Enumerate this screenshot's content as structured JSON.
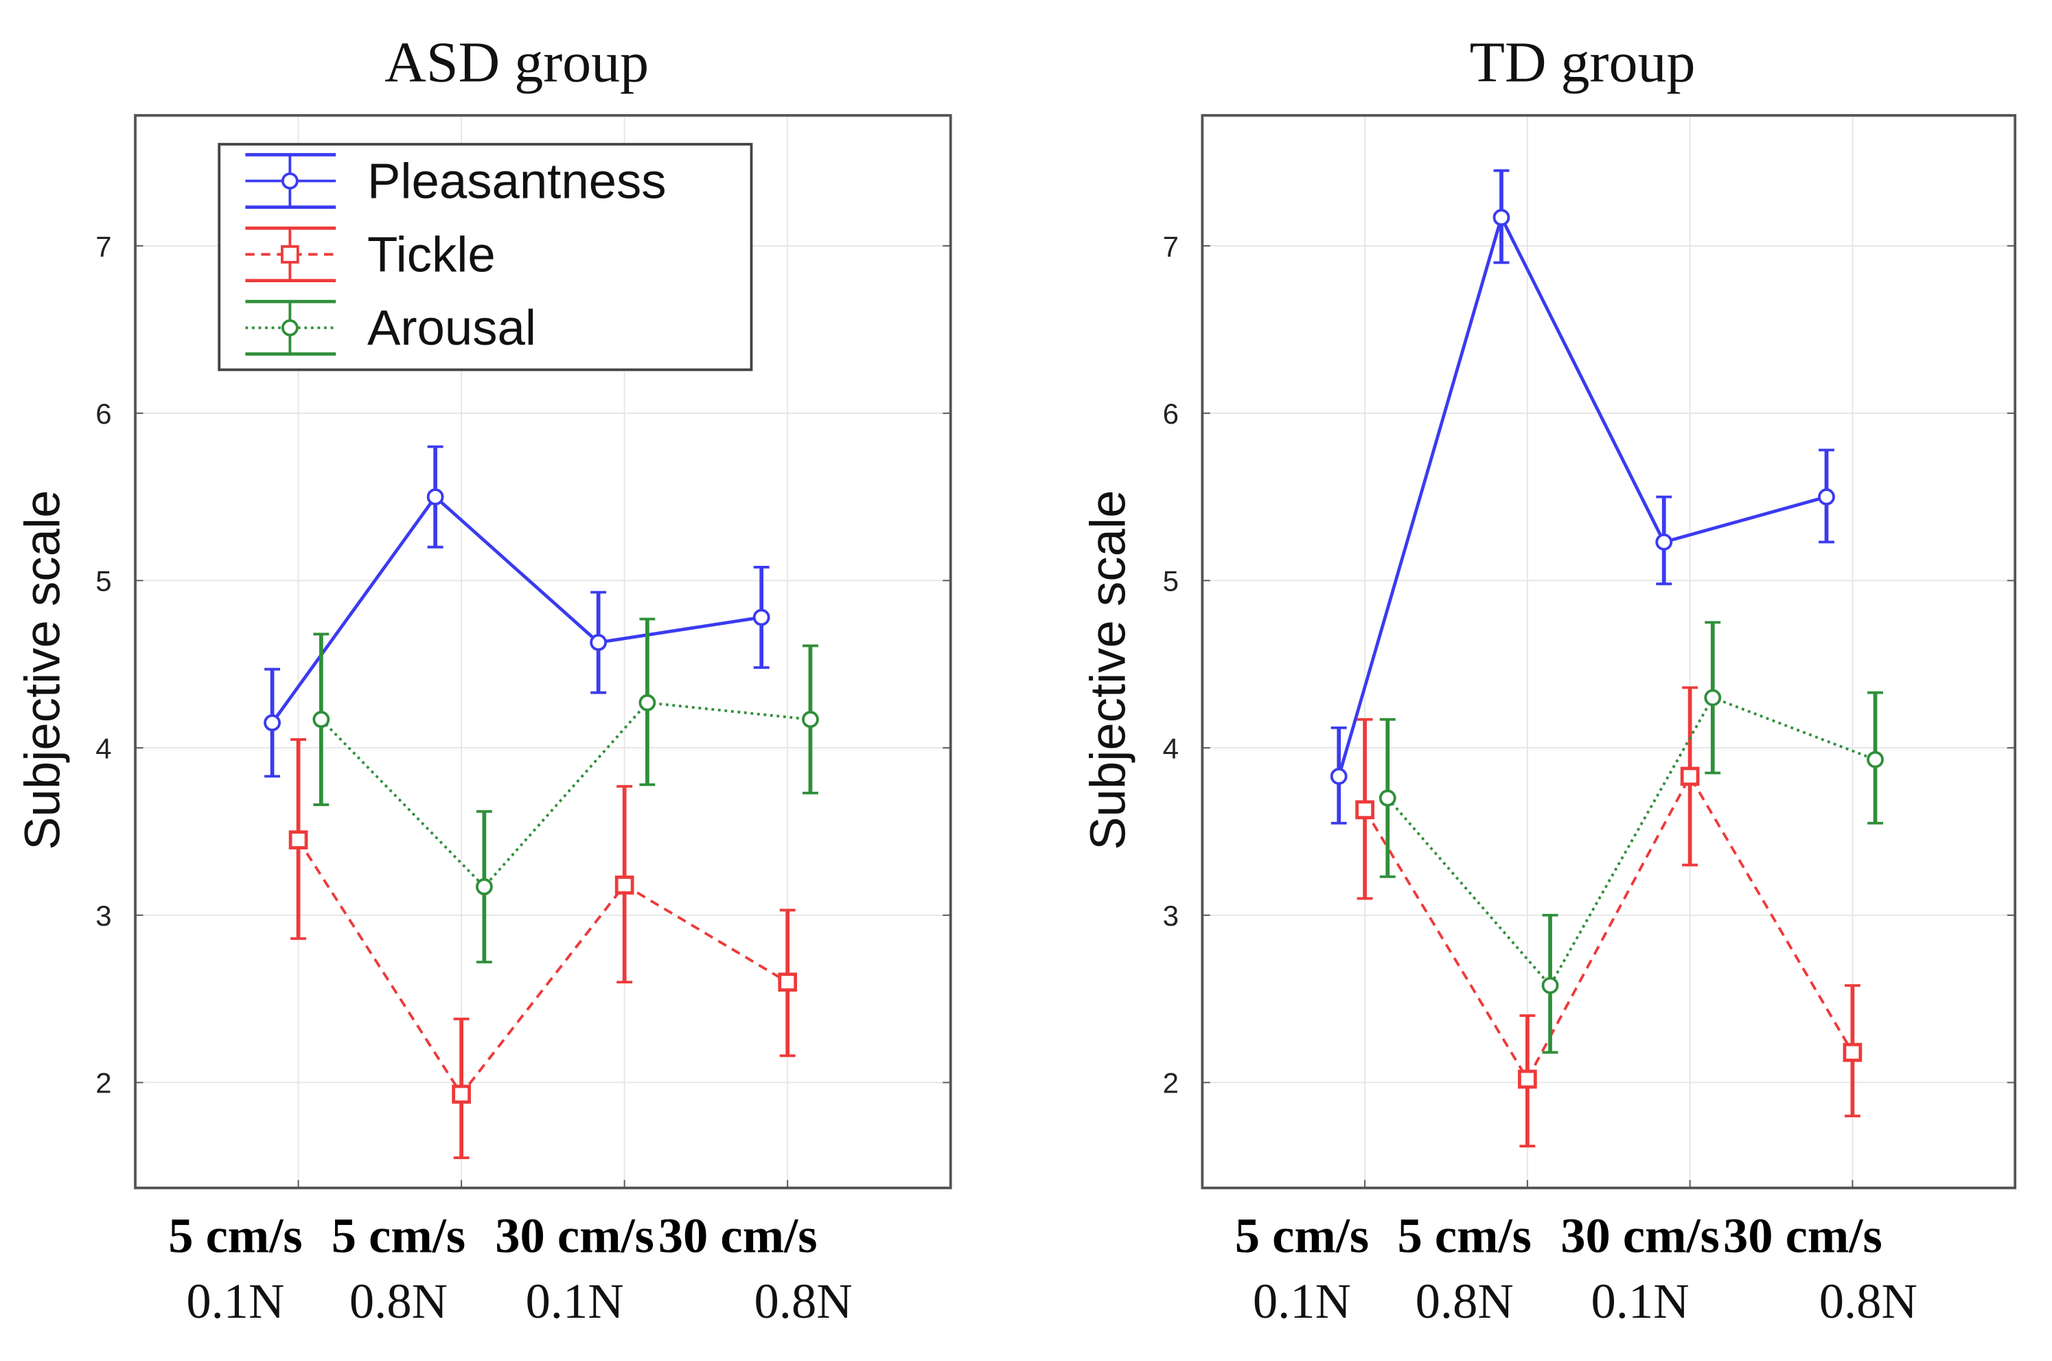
{
  "chart_data": [
    {
      "type": "line",
      "title": "ASD group",
      "ylabel": "Subjective scale",
      "xlabel": "",
      "categories": [
        [
          "5 cm/s",
          "0.1N"
        ],
        [
          "5 cm/s",
          "0.8N"
        ],
        [
          "30 cm/s",
          "0.1N"
        ],
        [
          "30 cm/s",
          "0.8N"
        ]
      ],
      "ylim": [
        1.37,
        7.78
      ],
      "yticks": [
        2,
        3,
        4,
        5,
        6,
        7
      ],
      "grid": true,
      "legend_position": "top-left",
      "series": [
        {
          "name": "Pleasantness",
          "color": "#3b3bf0",
          "style": "solid",
          "marker": "circle",
          "values": [
            4.15,
            5.5,
            4.63,
            4.78
          ],
          "lower": [
            3.83,
            5.2,
            4.33,
            4.48
          ],
          "upper": [
            4.47,
            5.8,
            4.93,
            5.08
          ]
        },
        {
          "name": "Tickle",
          "color": "#ee3a3a",
          "style": "dashed",
          "marker": "square",
          "values": [
            3.45,
            1.93,
            3.18,
            2.6
          ],
          "lower": [
            2.86,
            1.55,
            2.6,
            2.16
          ],
          "upper": [
            4.05,
            2.38,
            3.77,
            3.03
          ]
        },
        {
          "name": "Arousal",
          "color": "#2f8f3a",
          "style": "dotted",
          "marker": "circle",
          "values": [
            4.17,
            3.17,
            4.27,
            4.17
          ],
          "lower": [
            3.66,
            2.72,
            3.78,
            3.73
          ],
          "upper": [
            4.68,
            3.62,
            4.77,
            4.61
          ]
        }
      ]
    },
    {
      "type": "line",
      "title": "TD group",
      "ylabel": "Subjective scale",
      "xlabel": "",
      "categories": [
        [
          "5 cm/s",
          "0.1N"
        ],
        [
          "5 cm/s",
          "0.8N"
        ],
        [
          "30 cm/s",
          "0.1N"
        ],
        [
          "30 cm/s",
          "0.8N"
        ]
      ],
      "ylim": [
        1.37,
        7.78
      ],
      "yticks": [
        2,
        3,
        4,
        5,
        6,
        7
      ],
      "grid": true,
      "legend_position": "none",
      "series": [
        {
          "name": "Pleasantness",
          "color": "#3b3bf0",
          "style": "solid",
          "marker": "circle",
          "values": [
            3.83,
            7.17,
            5.23,
            5.5
          ],
          "lower": [
            3.55,
            6.9,
            4.98,
            5.23
          ],
          "upper": [
            4.12,
            7.45,
            5.5,
            5.78
          ]
        },
        {
          "name": "Tickle",
          "color": "#ee3a3a",
          "style": "dashed",
          "marker": "square",
          "values": [
            3.63,
            2.02,
            3.83,
            2.18
          ],
          "lower": [
            3.1,
            1.62,
            3.3,
            1.8
          ],
          "upper": [
            4.17,
            2.4,
            4.36,
            2.58
          ]
        },
        {
          "name": "Arousal",
          "color": "#2f8f3a",
          "style": "dotted",
          "marker": "circle",
          "values": [
            3.7,
            2.58,
            4.3,
            3.93
          ],
          "lower": [
            3.23,
            2.18,
            3.85,
            3.55
          ],
          "upper": [
            4.17,
            3.0,
            4.75,
            4.33
          ]
        }
      ]
    }
  ]
}
